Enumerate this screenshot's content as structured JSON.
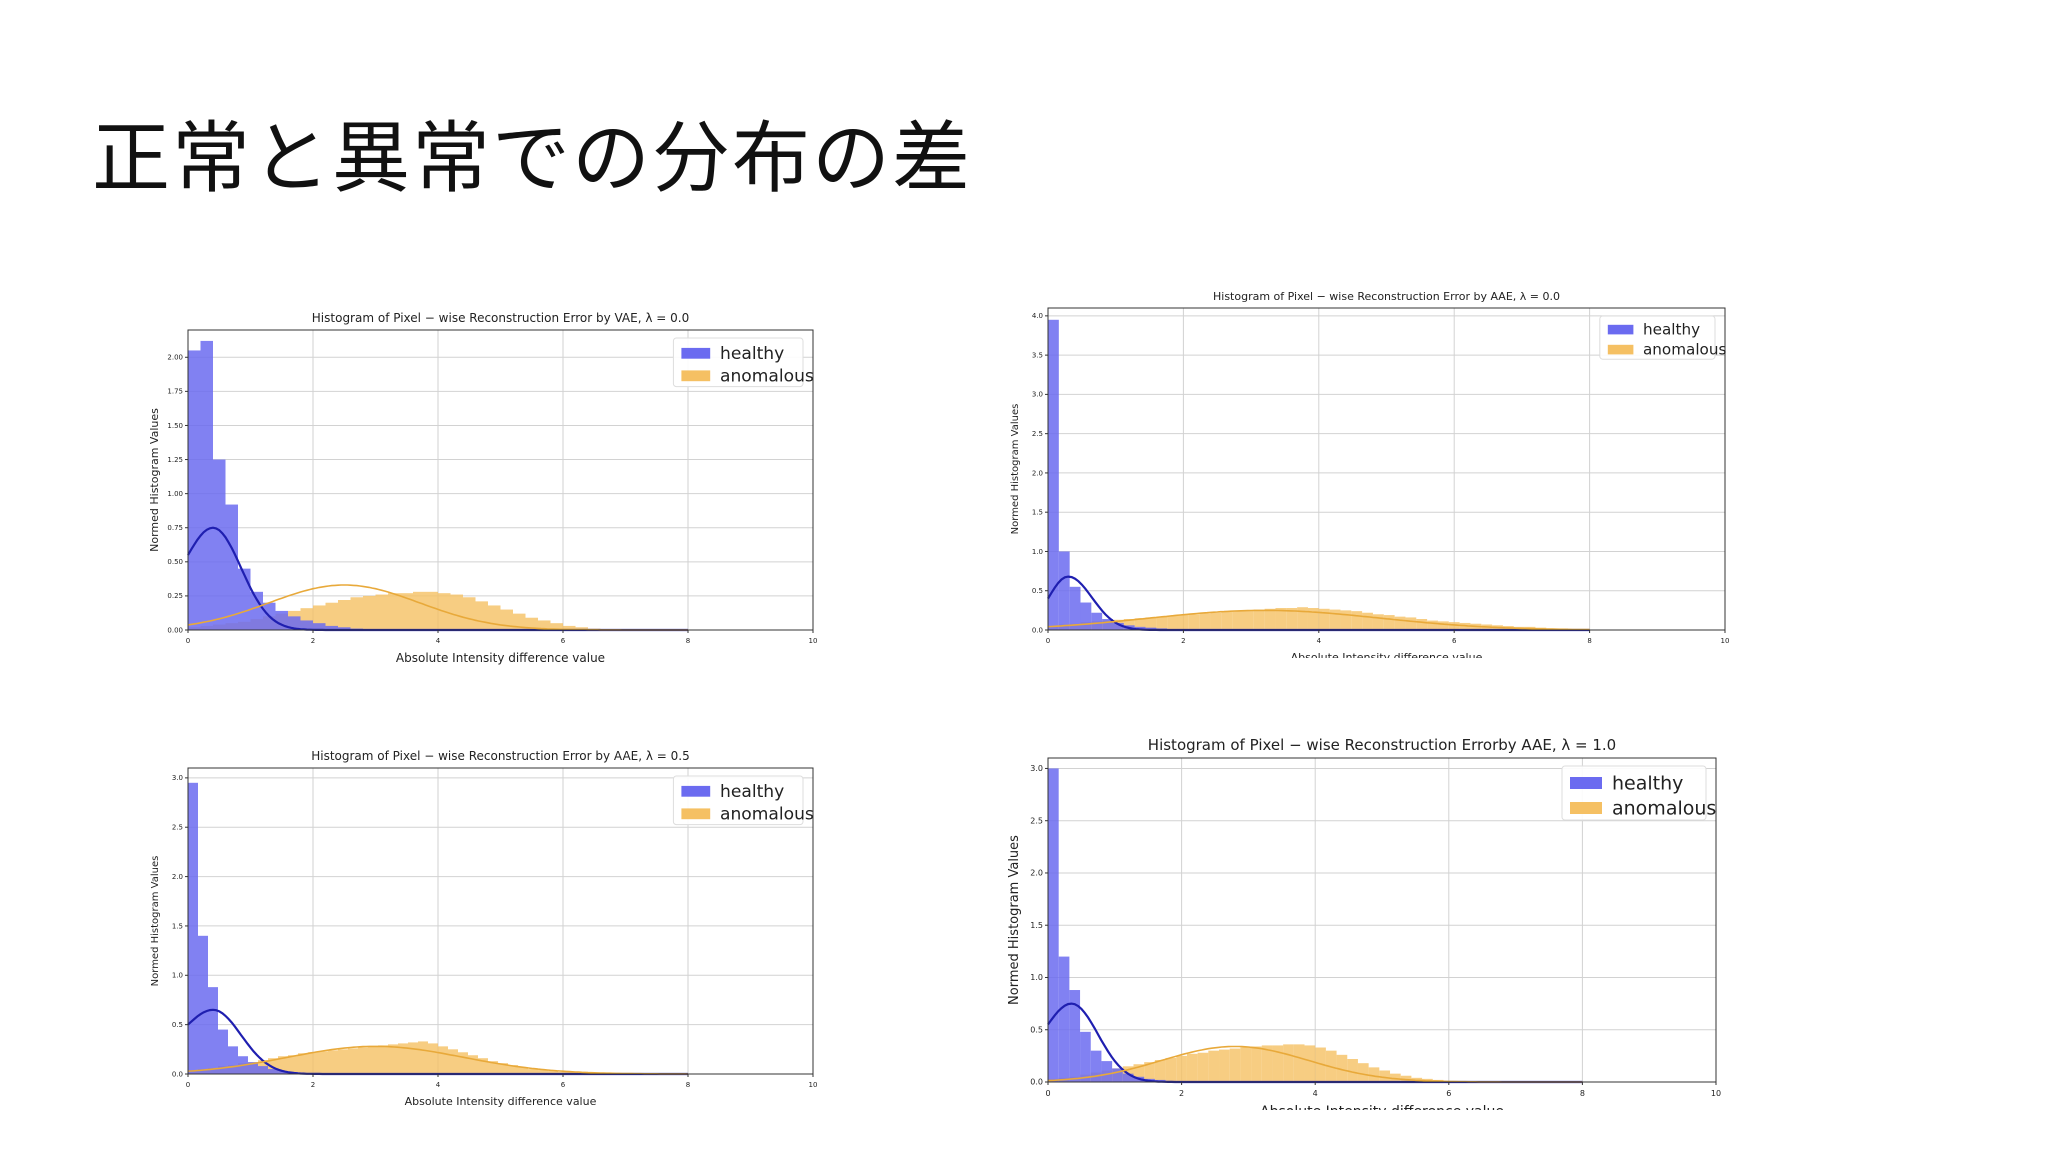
{
  "slide": {
    "title": "正常と異常での分布の差"
  },
  "colors": {
    "healthy": "#6b6bf0",
    "healthy_kde": "#1f1fb0",
    "anomalous": "#f5c063",
    "anomalous_kde": "#e8a93a",
    "grid": "#d2d2d2",
    "frame": "#333333"
  },
  "chart_data": [
    {
      "type": "histogram",
      "title": "Histogram of Pixel − wise Reconstruction Error by VAE,  λ = 0.0",
      "xlabel": "Absolute Intensity difference value",
      "ylabel": "Normed Histogram Values",
      "xlim": [
        0,
        10
      ],
      "ylim": [
        0,
        2.2
      ],
      "xticks": [
        "0",
        "2",
        "4",
        "6",
        "8",
        "10"
      ],
      "yticks": [
        "0.00",
        "0.25",
        "0.50",
        "0.75",
        "1.00",
        "1.25",
        "1.50",
        "1.75",
        "2.00"
      ],
      "ytick_values": [
        0,
        0.25,
        0.5,
        0.75,
        1.0,
        1.25,
        1.5,
        1.75,
        2.0
      ],
      "grid": true,
      "legend_position": "top-right",
      "bin_width": 0.2,
      "series": [
        {
          "name": "healthy",
          "kind": "hist",
          "values": [
            2.05,
            2.12,
            1.25,
            0.92,
            0.45,
            0.28,
            0.2,
            0.14,
            0.1,
            0.07,
            0.05,
            0.03,
            0.02,
            0.01
          ]
        },
        {
          "name": "anomalous",
          "kind": "hist",
          "values": [
            0.02,
            0.03,
            0.04,
            0.05,
            0.06,
            0.08,
            0.1,
            0.12,
            0.14,
            0.16,
            0.18,
            0.2,
            0.22,
            0.24,
            0.25,
            0.26,
            0.27,
            0.27,
            0.28,
            0.28,
            0.27,
            0.26,
            0.24,
            0.21,
            0.18,
            0.15,
            0.12,
            0.09,
            0.07,
            0.05,
            0.03,
            0.02,
            0.01
          ]
        },
        {
          "name": "healthy",
          "kind": "kde",
          "center": 0.4,
          "spread": 0.45,
          "peak": 0.75,
          "tail": 0.55
        },
        {
          "name": "anomalous",
          "kind": "kde",
          "center": 2.5,
          "spread": 1.2,
          "peak": 0.33
        }
      ]
    },
    {
      "type": "histogram",
      "title": "Histogram of Pixel − wise Reconstruction Error by AAE,  λ = 0.0",
      "xlabel": "Absolute Intensity difference value",
      "ylabel": "Normed Histogram Values",
      "xlim": [
        0,
        10
      ],
      "ylim": [
        0,
        4.1
      ],
      "xticks": [
        "0",
        "2",
        "4",
        "6",
        "8",
        "10"
      ],
      "yticks": [
        "0.0",
        "0.5",
        "1.0",
        "1.5",
        "2.0",
        "2.5",
        "3.0",
        "3.5",
        "4.0"
      ],
      "ytick_values": [
        0,
        0.5,
        1.0,
        1.5,
        2.0,
        2.5,
        3.0,
        3.5,
        4.0
      ],
      "grid": true,
      "legend_position": "top-right",
      "bin_width": 0.16,
      "series": [
        {
          "name": "healthy",
          "kind": "hist",
          "values": [
            3.95,
            1.0,
            0.55,
            0.35,
            0.22,
            0.14,
            0.09,
            0.06,
            0.04,
            0.03,
            0.02,
            0.01
          ]
        },
        {
          "name": "anomalous",
          "kind": "hist",
          "values": [
            0.05,
            0.07,
            0.08,
            0.1,
            0.11,
            0.12,
            0.13,
            0.14,
            0.15,
            0.16,
            0.17,
            0.18,
            0.19,
            0.2,
            0.21,
            0.22,
            0.23,
            0.24,
            0.25,
            0.26,
            0.27,
            0.28,
            0.28,
            0.29,
            0.28,
            0.27,
            0.26,
            0.25,
            0.24,
            0.22,
            0.2,
            0.19,
            0.17,
            0.16,
            0.14,
            0.12,
            0.11,
            0.1,
            0.09,
            0.08,
            0.07,
            0.06,
            0.05,
            0.04,
            0.04,
            0.03,
            0.02,
            0.02,
            0.01,
            0.01
          ]
        },
        {
          "name": "healthy",
          "kind": "kde",
          "center": 0.3,
          "spread": 0.35,
          "peak": 0.68,
          "tail": 0.4
        },
        {
          "name": "anomalous",
          "kind": "kde",
          "center": 3.2,
          "spread": 1.7,
          "peak": 0.25
        }
      ]
    },
    {
      "type": "histogram",
      "title": "Histogram of Pixel − wise Reconstruction Error by AAE,  λ = 0.5",
      "xlabel": "Absolute Intensity difference value",
      "ylabel": "Normed Histogram Values",
      "xlim": [
        0,
        10
      ],
      "ylim": [
        0,
        3.1
      ],
      "xticks": [
        "0",
        "2",
        "4",
        "6",
        "8",
        "10"
      ],
      "yticks": [
        "0.0",
        "0.5",
        "1.0",
        "1.5",
        "2.0",
        "2.5",
        "3.0"
      ],
      "ytick_values": [
        0,
        0.5,
        1.0,
        1.5,
        2.0,
        2.5,
        3.0
      ],
      "grid": true,
      "legend_position": "top-right",
      "bin_width": 0.16,
      "series": [
        {
          "name": "healthy",
          "kind": "hist",
          "values": [
            2.95,
            1.4,
            0.88,
            0.45,
            0.28,
            0.18,
            0.12,
            0.08,
            0.05,
            0.03,
            0.02,
            0.01
          ]
        },
        {
          "name": "anomalous",
          "kind": "hist",
          "values": [
            0.04,
            0.05,
            0.06,
            0.08,
            0.09,
            0.11,
            0.12,
            0.14,
            0.16,
            0.18,
            0.19,
            0.21,
            0.22,
            0.23,
            0.24,
            0.25,
            0.26,
            0.27,
            0.28,
            0.29,
            0.3,
            0.31,
            0.32,
            0.33,
            0.31,
            0.28,
            0.25,
            0.22,
            0.19,
            0.16,
            0.13,
            0.11,
            0.09,
            0.07,
            0.05,
            0.04,
            0.03,
            0.02,
            0.02,
            0.01
          ]
        },
        {
          "name": "healthy",
          "kind": "kde",
          "center": 0.4,
          "spread": 0.45,
          "peak": 0.65,
          "tail": 0.5
        },
        {
          "name": "anomalous",
          "kind": "kde",
          "center": 3.0,
          "spread": 1.4,
          "peak": 0.28
        }
      ]
    },
    {
      "type": "histogram",
      "title": "Histogram of Pixel − wise Reconstruction Errorby AAE,  λ = 1.0",
      "xlabel": "Absolute Intensity difference value",
      "ylabel": "Normed Histogram Values",
      "xlim": [
        0,
        10
      ],
      "ylim": [
        0,
        3.1
      ],
      "xticks": [
        "0",
        "2",
        "4",
        "6",
        "8",
        "10"
      ],
      "yticks": [
        "0.0",
        "0.5",
        "1.0",
        "1.5",
        "2.0",
        "2.5",
        "3.0"
      ],
      "ytick_values": [
        0,
        0.5,
        1.0,
        1.5,
        2.0,
        2.5,
        3.0
      ],
      "grid": true,
      "legend_position": "top-right",
      "bin_width": 0.16,
      "series": [
        {
          "name": "healthy",
          "kind": "hist",
          "values": [
            3.0,
            1.2,
            0.88,
            0.48,
            0.3,
            0.2,
            0.13,
            0.08,
            0.05,
            0.03,
            0.02,
            0.01
          ]
        },
        {
          "name": "anomalous",
          "kind": "hist",
          "values": [
            0.03,
            0.04,
            0.05,
            0.07,
            0.09,
            0.11,
            0.13,
            0.15,
            0.17,
            0.19,
            0.21,
            0.23,
            0.25,
            0.27,
            0.28,
            0.3,
            0.31,
            0.32,
            0.33,
            0.34,
            0.35,
            0.35,
            0.36,
            0.36,
            0.35,
            0.33,
            0.3,
            0.26,
            0.22,
            0.18,
            0.14,
            0.11,
            0.08,
            0.06,
            0.04,
            0.03,
            0.02,
            0.01
          ]
        },
        {
          "name": "healthy",
          "kind": "kde",
          "center": 0.35,
          "spread": 0.4,
          "peak": 0.75,
          "tail": 0.55
        },
        {
          "name": "anomalous",
          "kind": "kde",
          "center": 2.8,
          "spread": 1.1,
          "peak": 0.34
        }
      ]
    }
  ]
}
